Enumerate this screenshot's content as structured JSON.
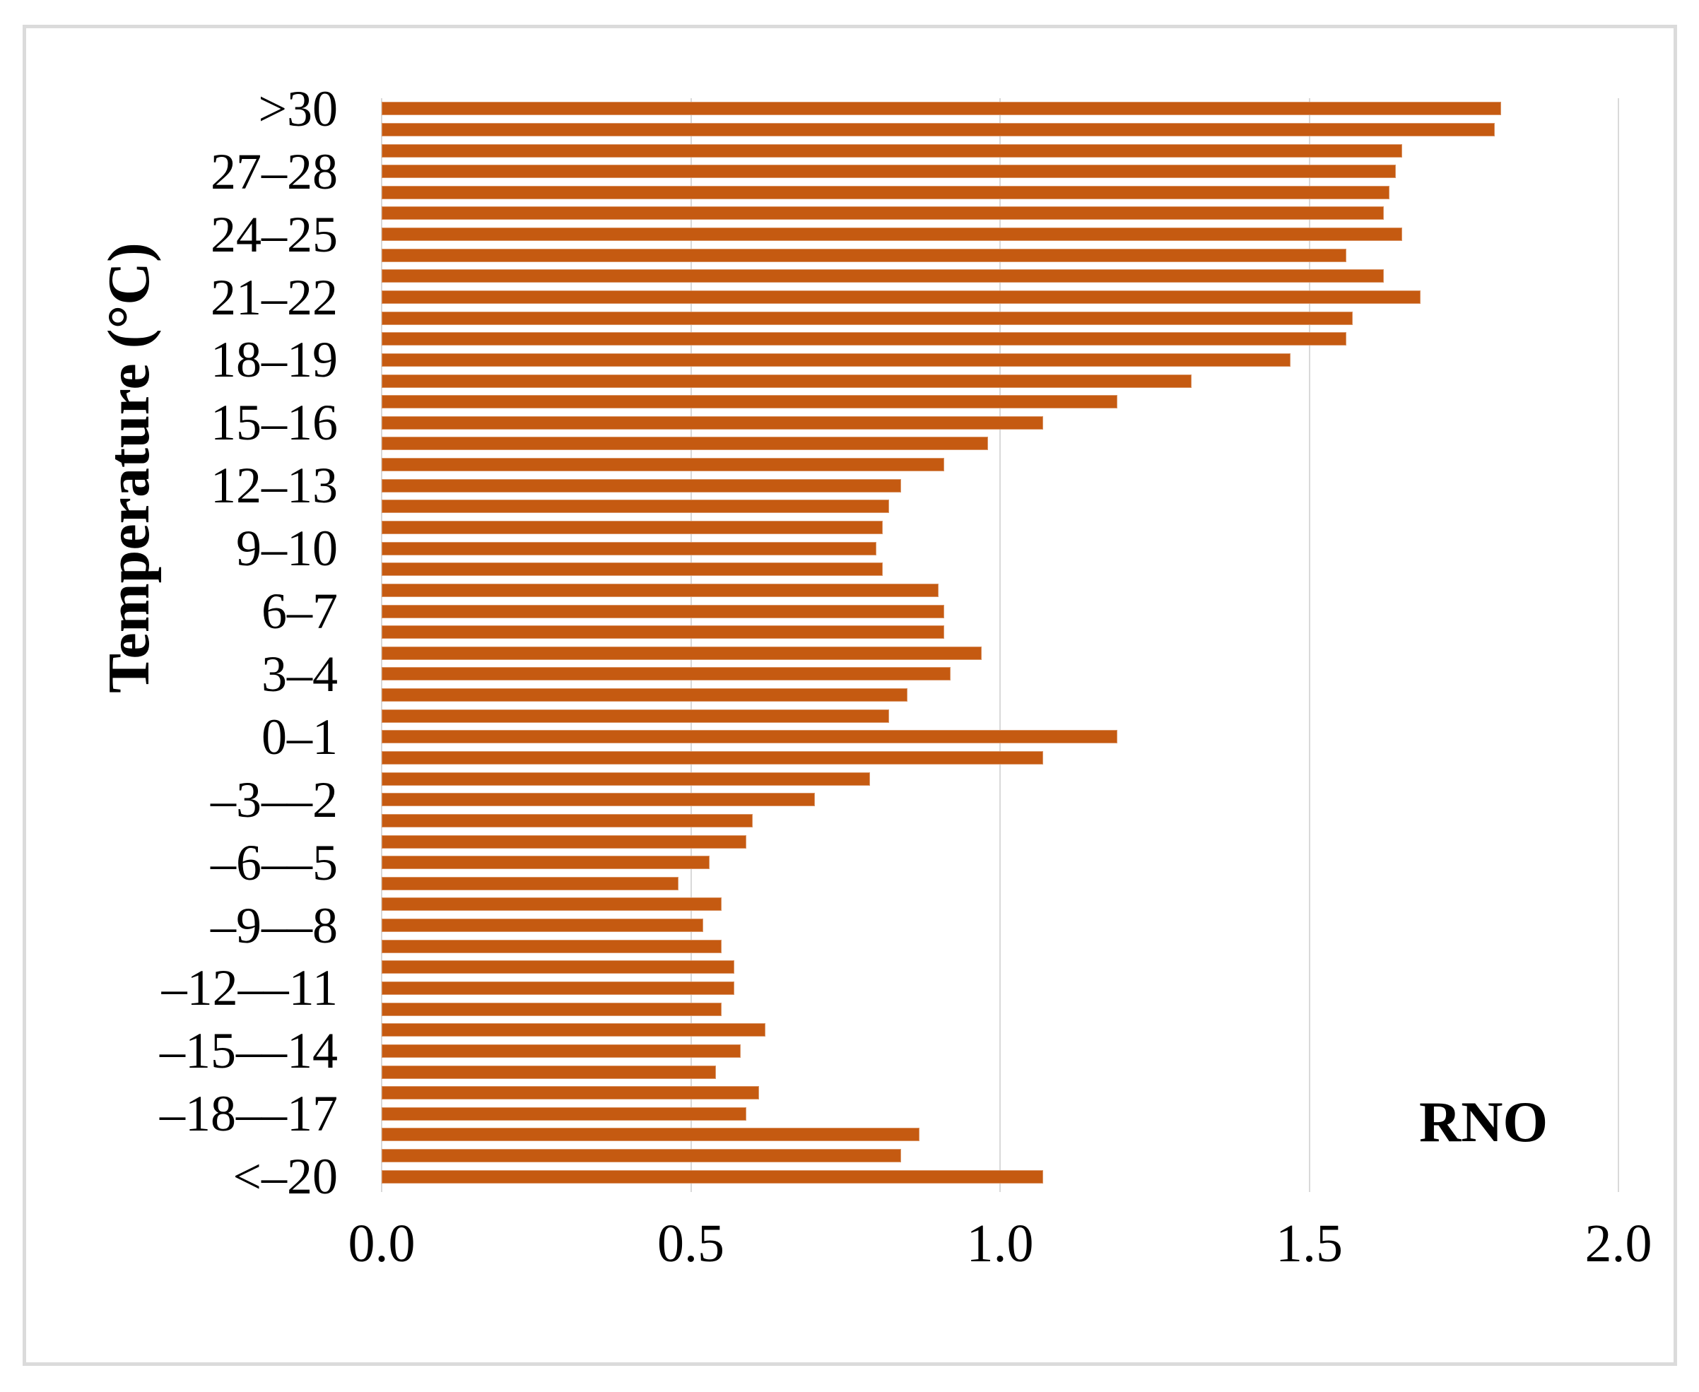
{
  "chart_data": {
    "type": "bar",
    "orientation": "horizontal",
    "ylabel": "Temperature (°C)",
    "series_label": "RNO",
    "xlim": [
      0,
      2.0
    ],
    "x_ticks": [
      0.0,
      0.5,
      1.0,
      1.5,
      2.0
    ],
    "x_tick_labels": [
      "0.0",
      "0.5",
      "1.0",
      "1.5",
      "2.0"
    ],
    "y_tick_labels": [
      ">30",
      "27–28",
      "24–25",
      "21–22",
      "18–19",
      "15–16",
      "12–13",
      "9–10",
      "6–7",
      "3–4",
      "0–1",
      "–3––2",
      "–6––5",
      "–9––8",
      "–12––11",
      "–15––14",
      "–18––17",
      "<–20"
    ],
    "categories_per_tick": 3,
    "values_top_to_bottom": [
      1.81,
      1.8,
      1.65,
      1.64,
      1.63,
      1.62,
      1.65,
      1.56,
      1.62,
      1.68,
      1.57,
      1.56,
      1.47,
      1.31,
      1.19,
      1.07,
      0.98,
      0.91,
      0.84,
      0.82,
      0.81,
      0.8,
      0.81,
      0.9,
      0.91,
      0.91,
      0.97,
      0.92,
      0.85,
      0.82,
      1.19,
      1.07,
      0.79,
      0.7,
      0.6,
      0.59,
      0.53,
      0.48,
      0.55,
      0.52,
      0.55,
      0.57,
      0.57,
      0.55,
      0.62,
      0.58,
      0.54,
      0.61,
      0.59,
      0.87,
      0.84,
      1.07
    ],
    "grid": "vertical-only",
    "legend": "none",
    "colors": {
      "bar": "#C55A11",
      "gridline": "#D9D9D9",
      "frame": "#DBDBDB",
      "text": "#000000"
    }
  }
}
